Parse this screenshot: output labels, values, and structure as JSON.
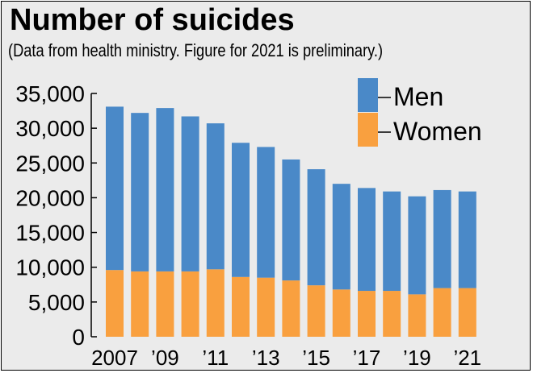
{
  "title": "Number of suicides",
  "subtitle": "(Data from health ministry. Figure for 2021 is preliminary.)",
  "colors": {
    "men": "#4a89c8",
    "women": "#f9a03f",
    "background": "#ebebeb"
  },
  "chart_data": {
    "type": "bar",
    "stacked": true,
    "title": "Number of suicides",
    "subtitle": "(Data from health ministry. Figure for 2021 is preliminary.)",
    "categories": [
      "2007",
      "2008",
      "2009",
      "2010",
      "2011",
      "2012",
      "2013",
      "2014",
      "2015",
      "2016",
      "2017",
      "2018",
      "2019",
      "2020",
      "2021"
    ],
    "x_tick_labels": [
      "2007",
      "",
      "’09",
      "",
      "’11",
      "",
      "’13",
      "",
      "’15",
      "",
      "’17",
      "",
      "’19",
      "",
      "’21"
    ],
    "series": [
      {
        "name": "Women",
        "color": "#f9a03f",
        "values": [
          9600,
          9400,
          9400,
          9400,
          9700,
          8600,
          8500,
          8100,
          7400,
          6800,
          6600,
          6600,
          6100,
          7000,
          7000
        ]
      },
      {
        "name": "Men",
        "color": "#4a89c8",
        "values": [
          23500,
          22800,
          23500,
          22300,
          21000,
          19300,
          18800,
          17400,
          16700,
          15200,
          14800,
          14300,
          14100,
          14100,
          13900
        ]
      }
    ],
    "totals": [
      33100,
      32200,
      32900,
      31700,
      30700,
      27900,
      27300,
      25500,
      24100,
      22000,
      21400,
      20900,
      20200,
      21100,
      20900
    ],
    "y_ticks": [
      "0",
      "5,000",
      "10,000",
      "15,000",
      "20,000",
      "25,000",
      "30,000",
      "35,000"
    ],
    "ylim": [
      0,
      35000
    ],
    "xlabel": "",
    "ylabel": "",
    "grid": false,
    "legend": {
      "position": "top-right",
      "entries": [
        "Men",
        "Women"
      ]
    }
  }
}
